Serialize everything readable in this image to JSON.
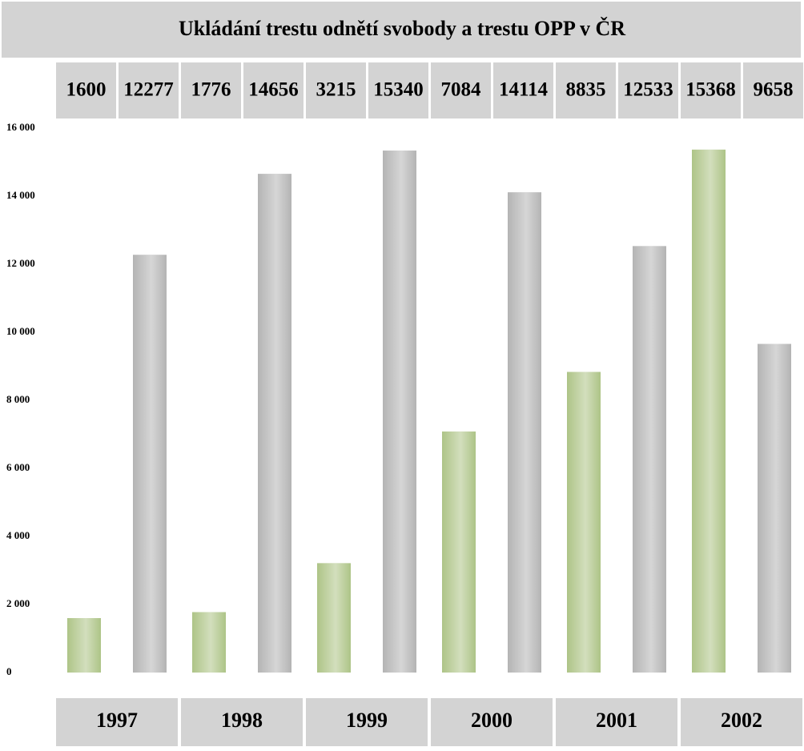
{
  "chart_data": {
    "type": "bar",
    "title": "Ukládání trestu odnětí svobody a trestu OPP v ČR",
    "categories": [
      "1997",
      "1998",
      "1999",
      "2000",
      "2001",
      "2002"
    ],
    "series": [
      {
        "color": "#aec487",
        "values": [
          1600,
          1776,
          3215,
          7084,
          8835,
          15368
        ]
      },
      {
        "color": "#b4b4b4",
        "values": [
          12277,
          14656,
          15340,
          14114,
          12533,
          9658
        ]
      }
    ],
    "ylim": [
      0,
      16000
    ],
    "yticks": [
      0,
      {
        "value": 2000,
        "label": "2 000"
      },
      {
        "value": 4000,
        "label": "4 000"
      },
      {
        "value": 6000,
        "label": "6 000"
      },
      {
        "value": 8000,
        "label": "8 000"
      },
      {
        "value": 10000,
        "label": "10 000"
      },
      {
        "value": 12000,
        "label": "12 000"
      },
      {
        "value": 14000,
        "label": "14 000"
      },
      {
        "value": 16000,
        "label": "16 000"
      }
    ]
  }
}
